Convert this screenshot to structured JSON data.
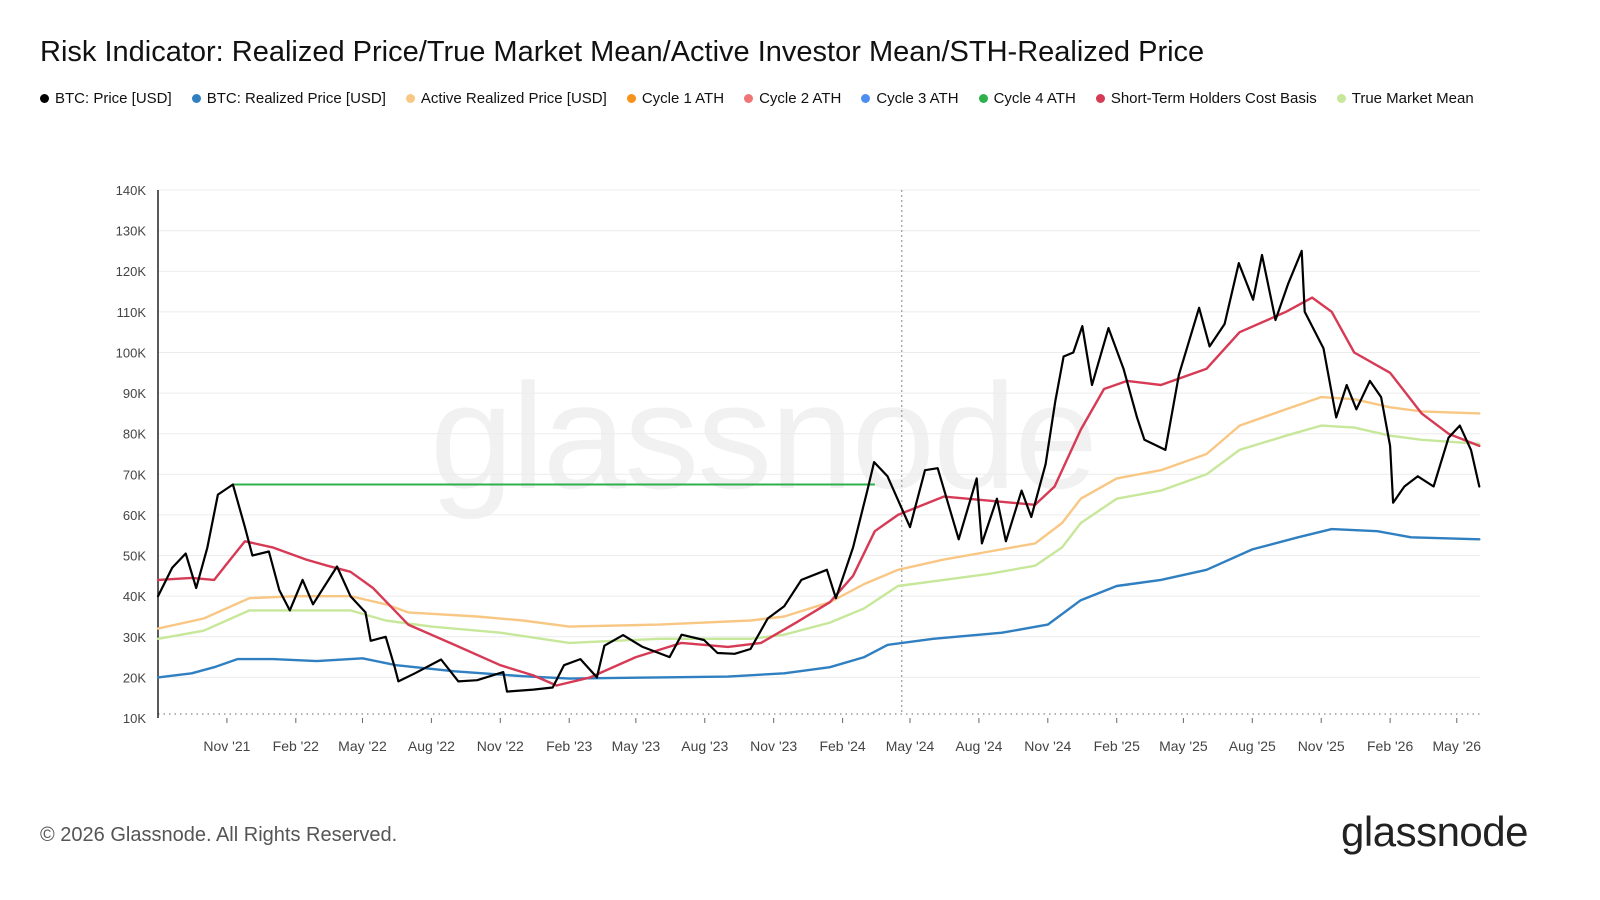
{
  "chart_data": {
    "type": "line",
    "title": "Risk Indicator: Realized Price/True Market Mean/Active Investor Mean/STH-Realized Price",
    "ylim": [
      10000,
      140000
    ],
    "yticks": [
      10000,
      20000,
      30000,
      40000,
      50000,
      60000,
      70000,
      80000,
      90000,
      100000,
      110000,
      120000,
      130000,
      140000
    ],
    "ytick_labels": [
      "10K",
      "20K",
      "30K",
      "40K",
      "50K",
      "60K",
      "70K",
      "80K",
      "90K",
      "100K",
      "110K",
      "120K",
      "130K",
      "140K"
    ],
    "xlim": [
      "2021-08-01",
      "2026-06-01"
    ],
    "xticks": [
      "2021-11-01",
      "2022-02-01",
      "2022-05-01",
      "2022-08-01",
      "2022-11-01",
      "2023-02-01",
      "2023-05-01",
      "2023-08-01",
      "2023-11-01",
      "2024-02-01",
      "2024-05-01",
      "2024-08-01",
      "2024-11-01",
      "2025-02-01",
      "2025-05-01",
      "2025-08-01",
      "2025-11-01",
      "2026-02-01",
      "2026-05-01"
    ],
    "xtick_labels": [
      "Nov '21",
      "Feb '22",
      "May '22",
      "Aug '22",
      "Nov '22",
      "Feb '23",
      "May '23",
      "Aug '23",
      "Nov '23",
      "Feb '24",
      "May '24",
      "Aug '24",
      "Nov '24",
      "Feb '25",
      "May '25",
      "Aug '25",
      "Nov '25",
      "Feb '26",
      "May '26"
    ],
    "vline_date": "2024-04-20",
    "legend_position": "top-left",
    "series": [
      {
        "name": "BTC: Price [USD]",
        "color": "#000000",
        "points": [
          [
            "2021-08-01",
            40000
          ],
          [
            "2021-08-20",
            47000
          ],
          [
            "2021-09-07",
            50500
          ],
          [
            "2021-09-21",
            42000
          ],
          [
            "2021-10-06",
            52000
          ],
          [
            "2021-10-20",
            65000
          ],
          [
            "2021-11-09",
            67500
          ],
          [
            "2021-11-25",
            57000
          ],
          [
            "2021-12-05",
            50000
          ],
          [
            "2021-12-27",
            51000
          ],
          [
            "2022-01-10",
            41500
          ],
          [
            "2022-01-24",
            36500
          ],
          [
            "2022-02-10",
            44000
          ],
          [
            "2022-02-24",
            38000
          ],
          [
            "2022-03-28",
            47300
          ],
          [
            "2022-04-15",
            40000
          ],
          [
            "2022-05-05",
            36000
          ],
          [
            "2022-05-12",
            29000
          ],
          [
            "2022-06-01",
            30000
          ],
          [
            "2022-06-13",
            22500
          ],
          [
            "2022-06-18",
            19000
          ],
          [
            "2022-07-10",
            21000
          ],
          [
            "2022-08-14",
            24400
          ],
          [
            "2022-09-06",
            19000
          ],
          [
            "2022-10-01",
            19300
          ],
          [
            "2022-11-05",
            21300
          ],
          [
            "2022-11-10",
            16500
          ],
          [
            "2022-12-15",
            17000
          ],
          [
            "2023-01-10",
            17500
          ],
          [
            "2023-01-25",
            23000
          ],
          [
            "2023-02-16",
            24500
          ],
          [
            "2023-03-10",
            20000
          ],
          [
            "2023-03-20",
            27800
          ],
          [
            "2023-04-14",
            30400
          ],
          [
            "2023-05-10",
            27500
          ],
          [
            "2023-06-15",
            25000
          ],
          [
            "2023-07-01",
            30500
          ],
          [
            "2023-07-31",
            29200
          ],
          [
            "2023-08-18",
            26000
          ],
          [
            "2023-09-10",
            25800
          ],
          [
            "2023-10-01",
            27000
          ],
          [
            "2023-10-24",
            34500
          ],
          [
            "2023-11-15",
            37500
          ],
          [
            "2023-12-08",
            44000
          ],
          [
            "2024-01-11",
            46500
          ],
          [
            "2024-01-23",
            39500
          ],
          [
            "2024-02-15",
            52000
          ],
          [
            "2024-03-05",
            66000
          ],
          [
            "2024-03-14",
            73000
          ],
          [
            "2024-04-01",
            69500
          ],
          [
            "2024-05-01",
            57000
          ],
          [
            "2024-05-21",
            71000
          ],
          [
            "2024-06-07",
            71500
          ],
          [
            "2024-07-05",
            54000
          ],
          [
            "2024-07-29",
            69000
          ],
          [
            "2024-08-05",
            53000
          ],
          [
            "2024-08-25",
            64000
          ],
          [
            "2024-09-06",
            53500
          ],
          [
            "2024-09-27",
            66000
          ],
          [
            "2024-10-10",
            59500
          ],
          [
            "2024-10-29",
            72500
          ],
          [
            "2024-11-11",
            88000
          ],
          [
            "2024-11-22",
            99000
          ],
          [
            "2024-12-05",
            100000
          ],
          [
            "2024-12-17",
            106500
          ],
          [
            "2024-12-30",
            92000
          ],
          [
            "2025-01-21",
            106000
          ],
          [
            "2025-02-10",
            96000
          ],
          [
            "2025-02-28",
            84000
          ],
          [
            "2025-03-10",
            78500
          ],
          [
            "2025-04-07",
            76000
          ],
          [
            "2025-04-25",
            94500
          ],
          [
            "2025-05-22",
            111000
          ],
          [
            "2025-06-05",
            101500
          ],
          [
            "2025-06-25",
            107000
          ],
          [
            "2025-07-14",
            122000
          ],
          [
            "2025-08-02",
            113000
          ],
          [
            "2025-08-14",
            124000
          ],
          [
            "2025-09-01",
            108000
          ],
          [
            "2025-09-18",
            117000
          ],
          [
            "2025-10-06",
            125000
          ],
          [
            "2025-10-10",
            110000
          ],
          [
            "2025-11-04",
            101000
          ],
          [
            "2025-11-21",
            84000
          ],
          [
            "2025-12-05",
            92000
          ],
          [
            "2025-12-18",
            86000
          ],
          [
            "2026-01-05",
            93000
          ],
          [
            "2026-01-20",
            89000
          ],
          [
            "2026-02-01",
            77000
          ],
          [
            "2026-02-05",
            63000
          ],
          [
            "2026-02-20",
            67000
          ],
          [
            "2026-03-10",
            69500
          ],
          [
            "2026-03-31",
            67000
          ],
          [
            "2026-04-20",
            79000
          ],
          [
            "2026-05-05",
            82000
          ],
          [
            "2026-05-20",
            76000
          ],
          [
            "2026-05-31",
            67000
          ]
        ]
      },
      {
        "name": "BTC: Realized Price [USD]",
        "color": "#2f7fc1",
        "points": [
          [
            "2021-08-01",
            20000
          ],
          [
            "2021-09-15",
            21000
          ],
          [
            "2021-10-15",
            22500
          ],
          [
            "2021-11-15",
            24500
          ],
          [
            "2022-01-01",
            24500
          ],
          [
            "2022-03-01",
            24000
          ],
          [
            "2022-05-01",
            24700
          ],
          [
            "2022-06-15",
            23000
          ],
          [
            "2022-09-01",
            21500
          ],
          [
            "2022-12-01",
            20300
          ],
          [
            "2023-02-01",
            19700
          ],
          [
            "2023-06-01",
            20000
          ],
          [
            "2023-09-01",
            20200
          ],
          [
            "2023-11-15",
            21000
          ],
          [
            "2024-01-15",
            22500
          ],
          [
            "2024-03-01",
            25000
          ],
          [
            "2024-04-01",
            28000
          ],
          [
            "2024-06-01",
            29500
          ],
          [
            "2024-09-01",
            31000
          ],
          [
            "2024-11-01",
            33000
          ],
          [
            "2024-12-15",
            39000
          ],
          [
            "2025-02-01",
            42500
          ],
          [
            "2025-04-01",
            44000
          ],
          [
            "2025-06-01",
            46500
          ],
          [
            "2025-08-01",
            51500
          ],
          [
            "2025-10-01",
            54500
          ],
          [
            "2025-11-15",
            56500
          ],
          [
            "2026-01-15",
            56000
          ],
          [
            "2026-03-01",
            54500
          ],
          [
            "2026-05-31",
            54000
          ]
        ]
      },
      {
        "name": "Active Realized Price [USD]",
        "color": "#f9c784",
        "points": [
          [
            "2021-08-01",
            32000
          ],
          [
            "2021-10-01",
            34500
          ],
          [
            "2021-12-01",
            39500
          ],
          [
            "2022-02-01",
            40000
          ],
          [
            "2022-04-15",
            40000
          ],
          [
            "2022-06-01",
            38000
          ],
          [
            "2022-07-01",
            36000
          ],
          [
            "2022-10-01",
            35000
          ],
          [
            "2022-12-01",
            34000
          ],
          [
            "2023-02-01",
            32500
          ],
          [
            "2023-06-01",
            33000
          ],
          [
            "2023-10-01",
            34000
          ],
          [
            "2023-11-15",
            35000
          ],
          [
            "2024-01-15",
            38500
          ],
          [
            "2024-03-01",
            43000
          ],
          [
            "2024-04-15",
            46500
          ],
          [
            "2024-06-15",
            49000
          ],
          [
            "2024-08-15",
            51000
          ],
          [
            "2024-10-15",
            53000
          ],
          [
            "2024-11-20",
            58000
          ],
          [
            "2024-12-15",
            64000
          ],
          [
            "2025-02-01",
            69000
          ],
          [
            "2025-04-01",
            71000
          ],
          [
            "2025-06-01",
            75000
          ],
          [
            "2025-07-15",
            82000
          ],
          [
            "2025-09-15",
            86000
          ],
          [
            "2025-11-01",
            89000
          ],
          [
            "2025-12-15",
            88500
          ],
          [
            "2026-02-01",
            86500
          ],
          [
            "2026-03-15",
            85500
          ],
          [
            "2026-05-31",
            85000
          ]
        ]
      },
      {
        "name": "True Market Mean",
        "color": "#c7e79a",
        "points": [
          [
            "2021-08-01",
            29500
          ],
          [
            "2021-10-01",
            31500
          ],
          [
            "2021-12-01",
            36500
          ],
          [
            "2022-02-01",
            36500
          ],
          [
            "2022-04-15",
            36500
          ],
          [
            "2022-06-01",
            34000
          ],
          [
            "2022-08-01",
            32500
          ],
          [
            "2022-11-01",
            31000
          ],
          [
            "2023-02-01",
            28500
          ],
          [
            "2023-06-01",
            29500
          ],
          [
            "2023-10-01",
            29500
          ],
          [
            "2023-11-15",
            30500
          ],
          [
            "2024-01-15",
            33500
          ],
          [
            "2024-03-01",
            37000
          ],
          [
            "2024-04-15",
            42500
          ],
          [
            "2024-06-15",
            44000
          ],
          [
            "2024-08-15",
            45500
          ],
          [
            "2024-10-15",
            47500
          ],
          [
            "2024-11-20",
            52000
          ],
          [
            "2024-12-15",
            58000
          ],
          [
            "2025-02-01",
            64000
          ],
          [
            "2025-04-01",
            66000
          ],
          [
            "2025-06-01",
            70000
          ],
          [
            "2025-07-15",
            76000
          ],
          [
            "2025-09-15",
            79500
          ],
          [
            "2025-11-01",
            82000
          ],
          [
            "2025-12-15",
            81500
          ],
          [
            "2026-02-01",
            79500
          ],
          [
            "2026-03-15",
            78500
          ],
          [
            "2026-05-31",
            77500
          ]
        ]
      },
      {
        "name": "Short-Term Holders Cost Basis",
        "color": "#d63a55",
        "points": [
          [
            "2021-08-01",
            44000
          ],
          [
            "2021-09-15",
            44500
          ],
          [
            "2021-10-15",
            44000
          ],
          [
            "2021-11-01",
            48000
          ],
          [
            "2021-11-25",
            53500
          ],
          [
            "2022-01-01",
            52000
          ],
          [
            "2022-02-15",
            49000
          ],
          [
            "2022-03-15",
            47500
          ],
          [
            "2022-04-15",
            46000
          ],
          [
            "2022-05-15",
            42000
          ],
          [
            "2022-07-01",
            33000
          ],
          [
            "2022-09-01",
            28000
          ],
          [
            "2022-11-01",
            23000
          ],
          [
            "2022-12-15",
            20500
          ],
          [
            "2023-01-15",
            18000
          ],
          [
            "2023-03-01",
            20000
          ],
          [
            "2023-05-01",
            25000
          ],
          [
            "2023-07-01",
            28500
          ],
          [
            "2023-09-01",
            27500
          ],
          [
            "2023-10-15",
            28500
          ],
          [
            "2023-12-01",
            33500
          ],
          [
            "2024-01-15",
            38500
          ],
          [
            "2024-02-15",
            45000
          ],
          [
            "2024-03-15",
            56000
          ],
          [
            "2024-04-15",
            60000
          ],
          [
            "2024-06-15",
            64500
          ],
          [
            "2024-08-15",
            63500
          ],
          [
            "2024-10-15",
            62500
          ],
          [
            "2024-11-10",
            67000
          ],
          [
            "2024-12-15",
            81000
          ],
          [
            "2025-01-15",
            91000
          ],
          [
            "2025-02-15",
            93000
          ],
          [
            "2025-04-01",
            92000
          ],
          [
            "2025-06-01",
            96000
          ],
          [
            "2025-07-15",
            105000
          ],
          [
            "2025-09-15",
            110000
          ],
          [
            "2025-10-20",
            113500
          ],
          [
            "2025-11-15",
            110000
          ],
          [
            "2025-12-15",
            100000
          ],
          [
            "2026-02-01",
            95000
          ],
          [
            "2026-03-15",
            85000
          ],
          [
            "2026-04-20",
            80000
          ],
          [
            "2026-05-31",
            77000
          ]
        ]
      },
      {
        "name": "Cycle 4 ATH",
        "color": "#2eb04c",
        "points": [
          [
            "2021-11-09",
            67500
          ],
          [
            "2024-03-14",
            67500
          ]
        ]
      }
    ],
    "legend": [
      {
        "name": "BTC: Price [USD]",
        "color": "#000000"
      },
      {
        "name": "BTC: Realized Price [USD]",
        "color": "#2f7fc1"
      },
      {
        "name": "Active Realized Price [USD]",
        "color": "#f9c784"
      },
      {
        "name": "Cycle 1 ATH",
        "color": "#f7931a"
      },
      {
        "name": "Cycle 2 ATH",
        "color": "#f07476"
      },
      {
        "name": "Cycle 3 ATH",
        "color": "#4d8ff0"
      },
      {
        "name": "Cycle 4 ATH",
        "color": "#2eb04c"
      },
      {
        "name": "Short-Term Holders Cost Basis",
        "color": "#d63a55"
      },
      {
        "name": "True Market Mean",
        "color": "#c7e79a"
      }
    ]
  },
  "footer": {
    "copyright": "© 2026 Glassnode. All Rights Reserved.",
    "brand": "glassnode",
    "watermark": "glassnode"
  }
}
